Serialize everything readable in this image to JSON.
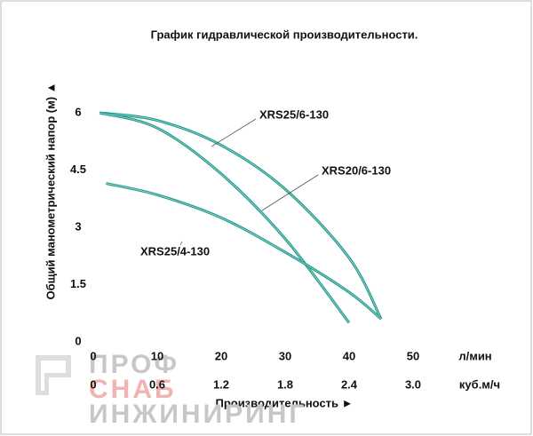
{
  "chart_data": {
    "type": "line",
    "title": "График гидравлической производительности.",
    "y_label": "Общий манометрический напор (м) ▲",
    "x_label": "Производительность ►",
    "x_unit": "л/мин",
    "x2_unit": "куб.м/ч",
    "xlim": [
      0,
      50
    ],
    "xticks": [
      0,
      10,
      20,
      30,
      40,
      50
    ],
    "x2lim": [
      0,
      3
    ],
    "x2ticks": [
      0,
      0.6,
      1.2,
      1.8,
      2.4,
      {
        "value": 3,
        "label": "3.0"
      }
    ],
    "ylim": [
      0,
      6
    ],
    "yticks": [
      0,
      1.5,
      3,
      4.5,
      6
    ],
    "series": [
      {
        "name": "XRS25/6-130",
        "color": "#1f9a8c",
        "x": [
          1,
          10,
          20,
          30,
          40,
          45
        ],
        "values": [
          6.0,
          5.8,
          5.15,
          4.0,
          2.2,
          0.6
        ]
      },
      {
        "name": "XRS20/6-130",
        "color": "#1f9a8c",
        "x": [
          1,
          10,
          20,
          30,
          40
        ],
        "values": [
          6.0,
          5.6,
          4.4,
          2.7,
          0.5
        ]
      },
      {
        "name": "XRS25/4-130",
        "color": "#1f9a8c",
        "x": [
          2,
          10,
          20,
          30,
          40,
          45
        ],
        "values": [
          4.15,
          3.85,
          3.25,
          2.35,
          1.3,
          0.6
        ]
      }
    ],
    "watermark": [
      "ПРОФ",
      "СНАБ",
      "ИНЖИНИРИНГ"
    ]
  }
}
